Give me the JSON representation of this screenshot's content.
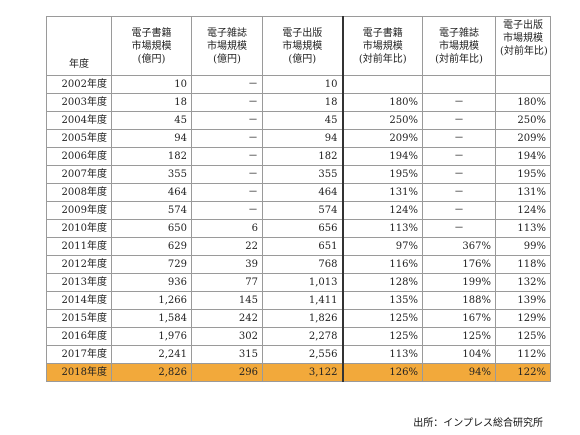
{
  "headers": {
    "year": "年度",
    "ebook": [
      "電子書籍",
      "市場規模",
      "(億円)"
    ],
    "emag": [
      "電子雑誌",
      "市場規模",
      "(億円)"
    ],
    "epub": [
      "電子出版",
      "市場規模",
      "(億円)"
    ],
    "ebook_yoy": [
      "電子書籍",
      "市場規模",
      "(対前年比)"
    ],
    "emag_yoy": [
      "電子雑誌",
      "市場規模",
      "(対前年比)"
    ],
    "epub_yoy": [
      "電子出版",
      "市場規模",
      "(対前年比)"
    ]
  },
  "rows": [
    [
      "2002年度",
      "10",
      "－",
      "10",
      "",
      "",
      ""
    ],
    [
      "2003年度",
      "18",
      "－",
      "18",
      "180%",
      "－",
      "180%"
    ],
    [
      "2004年度",
      "45",
      "－",
      "45",
      "250%",
      "－",
      "250%"
    ],
    [
      "2005年度",
      "94",
      "－",
      "94",
      "209%",
      "－",
      "209%"
    ],
    [
      "2006年度",
      "182",
      "－",
      "182",
      "194%",
      "－",
      "194%"
    ],
    [
      "2007年度",
      "355",
      "－",
      "355",
      "195%",
      "－",
      "195%"
    ],
    [
      "2008年度",
      "464",
      "－",
      "464",
      "131%",
      "－",
      "131%"
    ],
    [
      "2009年度",
      "574",
      "－",
      "574",
      "124%",
      "－",
      "124%"
    ],
    [
      "2010年度",
      "650",
      "6",
      "656",
      "113%",
      "－",
      "113%"
    ],
    [
      "2011年度",
      "629",
      "22",
      "651",
      "97%",
      "367%",
      "99%"
    ],
    [
      "2012年度",
      "729",
      "39",
      "768",
      "116%",
      "176%",
      "118%"
    ],
    [
      "2013年度",
      "936",
      "77",
      "1,013",
      "128%",
      "199%",
      "132%"
    ],
    [
      "2014年度",
      "1,266",
      "145",
      "1,411",
      "135%",
      "188%",
      "139%"
    ],
    [
      "2015年度",
      "1,584",
      "242",
      "1,826",
      "125%",
      "167%",
      "129%"
    ],
    [
      "2016年度",
      "1,976",
      "302",
      "2,278",
      "125%",
      "125%",
      "125%"
    ],
    [
      "2017年度",
      "2,241",
      "315",
      "2,556",
      "113%",
      "104%",
      "112%"
    ],
    [
      "2018年度",
      "2,826",
      "296",
      "3,122",
      "126%",
      "94%",
      "122%"
    ]
  ],
  "highlight_row": "2018年度",
  "highlight_color": "#f2a93b",
  "source": "出所：インプレス総合研究所"
}
